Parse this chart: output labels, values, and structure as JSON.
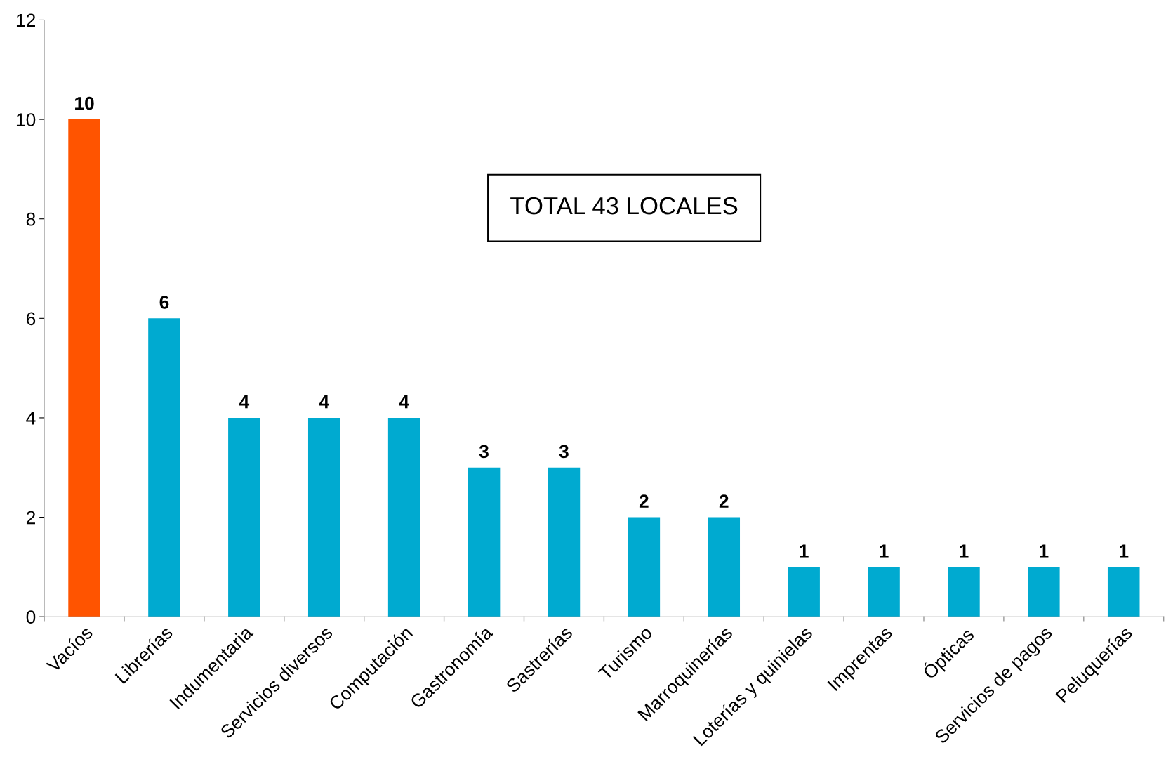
{
  "chart_data": {
    "type": "bar",
    "categories": [
      "Vacíos",
      "Librerías",
      "Indumentaria",
      "Servicios diversos",
      "Computación",
      "Gastronomía",
      "Sastrerías",
      "Turismo",
      "Marroquinerías",
      "Loterías y quinielas",
      "Imprentas",
      "Ópticas",
      "Servicios de pagos",
      "Peluquerías"
    ],
    "values": [
      10,
      6,
      4,
      4,
      4,
      3,
      3,
      2,
      2,
      1,
      1,
      1,
      1,
      1
    ],
    "colors": [
      "#ff5400",
      "#00aad0",
      "#00aad0",
      "#00aad0",
      "#00aad0",
      "#00aad0",
      "#00aad0",
      "#00aad0",
      "#00aad0",
      "#00aad0",
      "#00aad0",
      "#00aad0",
      "#00aad0",
      "#00aad0"
    ],
    "ylim": [
      0,
      12
    ],
    "yticks": [
      0,
      2,
      4,
      6,
      8,
      10,
      12
    ],
    "data_labels": true,
    "grid": false,
    "legend": false,
    "annotations": [
      "TOTAL 43 LOCALES"
    ]
  }
}
